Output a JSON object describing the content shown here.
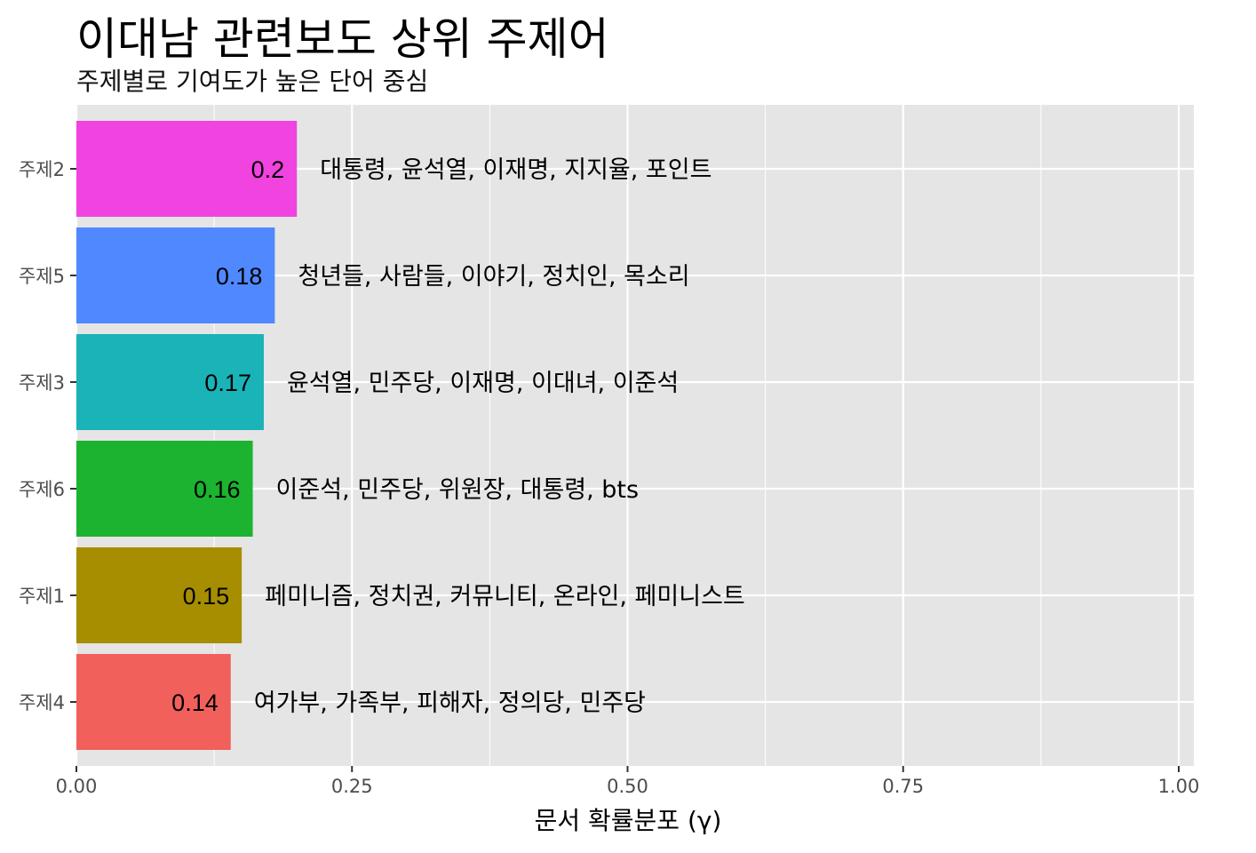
{
  "chart_data": {
    "type": "bar",
    "orientation": "horizontal",
    "title": "이대남 관련보도 상위 주제어",
    "subtitle": "주제별로 기여도가 높은 단어 중심",
    "xlabel": "문서 확률분포 (γ)",
    "ylabel": "",
    "xlim": [
      0,
      1
    ],
    "x_ticks": [
      "0.00",
      "0.25",
      "0.50",
      "0.75",
      "1.00"
    ],
    "grid": true,
    "legend": "none",
    "bars": [
      {
        "category": "주제2",
        "value": 0.2,
        "value_label": "0.2",
        "terms": "대통령, 윤석열, 이재명, 지지율, 포인트",
        "color": "#F143DF"
      },
      {
        "category": "주제5",
        "value": 0.18,
        "value_label": "0.18",
        "terms": "청년들, 사람들, 이야기, 정치인, 목소리",
        "color": "#5088FF"
      },
      {
        "category": "주제3",
        "value": 0.17,
        "value_label": "0.17",
        "terms": "윤석열, 민주당, 이재명, 이대녀, 이준석",
        "color": "#19B3B8"
      },
      {
        "category": "주제6",
        "value": 0.16,
        "value_label": "0.16",
        "terms": "이준석, 민주당, 위원장, 대통령, bts",
        "color": "#1BB32F"
      },
      {
        "category": "주제1",
        "value": 0.15,
        "value_label": "0.15",
        "terms": "페미니즘, 정치권, 커뮤니티, 온라인, 페미니스트",
        "color": "#A68E00"
      },
      {
        "category": "주제4",
        "value": 0.14,
        "value_label": "0.14",
        "terms": "여가부, 가족부, 피해자, 정의당, 민주당",
        "color": "#F2605C"
      }
    ]
  },
  "colors": {
    "panel": "#E5E5E5",
    "grid": "#FFFFFF",
    "axis_text": "#4D4D4D"
  }
}
